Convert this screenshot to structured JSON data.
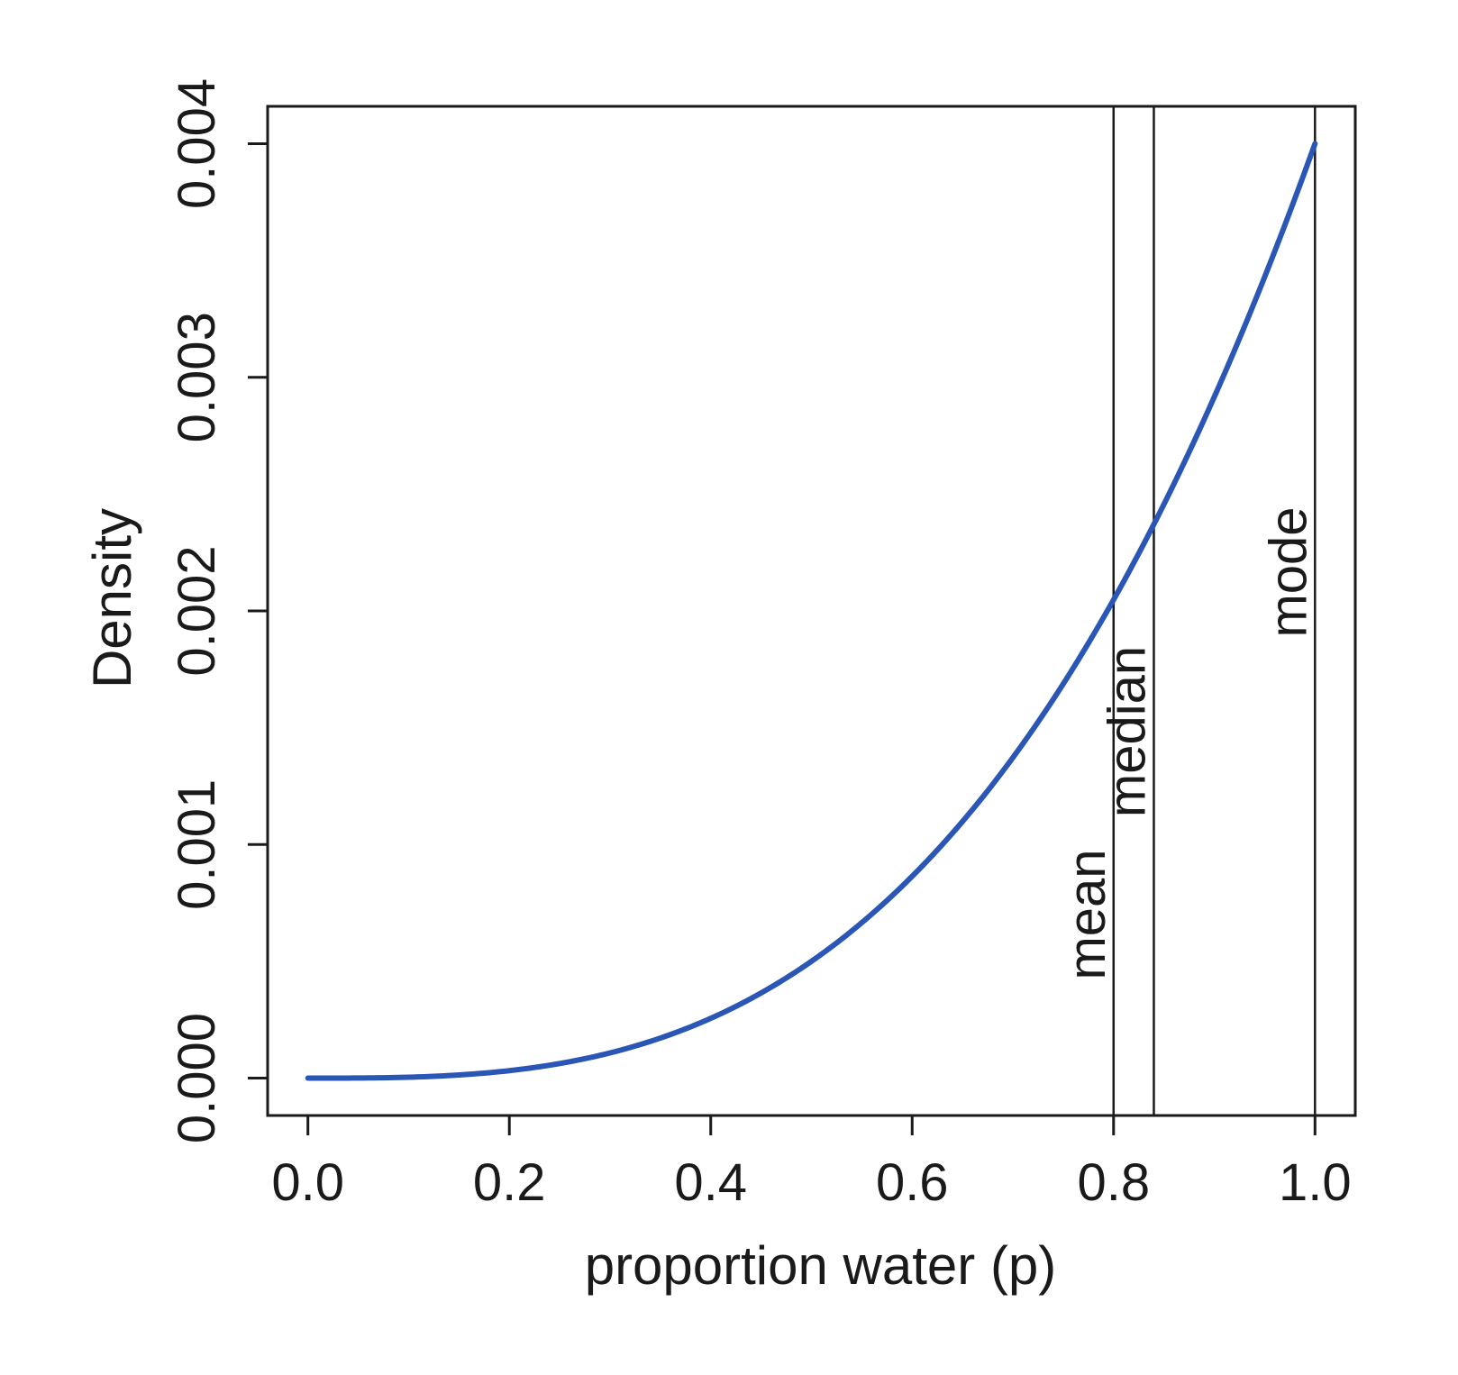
{
  "chart_data": {
    "type": "line",
    "title": "",
    "xlabel": "proportion water (p)",
    "ylabel": "Density",
    "xlim": [
      -0.04,
      1.04
    ],
    "ylim": [
      -0.00016,
      0.00416
    ],
    "x_ticks": [
      0.0,
      0.2,
      0.4,
      0.6,
      0.8,
      1.0
    ],
    "x_tick_labels": [
      "0.0",
      "0.2",
      "0.4",
      "0.6",
      "0.8",
      "1.0"
    ],
    "y_ticks": [
      0.0,
      0.001,
      0.002,
      0.003,
      0.004
    ],
    "y_tick_labels": [
      "0.000",
      "0.001",
      "0.002",
      "0.003",
      "0.004"
    ],
    "grid": false,
    "line_color": "#2a56b5",
    "series": [
      {
        "x": [
          0.0,
          0.05,
          0.1,
          0.15,
          0.2,
          0.25,
          0.3,
          0.35,
          0.4,
          0.45,
          0.5,
          0.55,
          0.6,
          0.65,
          0.7,
          0.75,
          0.8,
          0.85,
          0.9,
          0.95,
          1.0
        ],
        "y": [
          0.0,
          5e-07,
          4e-06,
          1.35e-05,
          3.2e-05,
          6.25e-05,
          0.000108,
          0.0001715,
          0.000256,
          0.0003645,
          0.0005,
          0.0006655,
          0.000864,
          0.0010985,
          0.001372,
          0.0016875,
          0.002048,
          0.0024565,
          0.002916,
          0.0034295,
          0.004
        ]
      }
    ],
    "vlines": [
      {
        "x": 0.8,
        "label": "mean"
      },
      {
        "x": 0.84,
        "label": "median"
      },
      {
        "x": 1.0,
        "label": "mode"
      }
    ]
  }
}
